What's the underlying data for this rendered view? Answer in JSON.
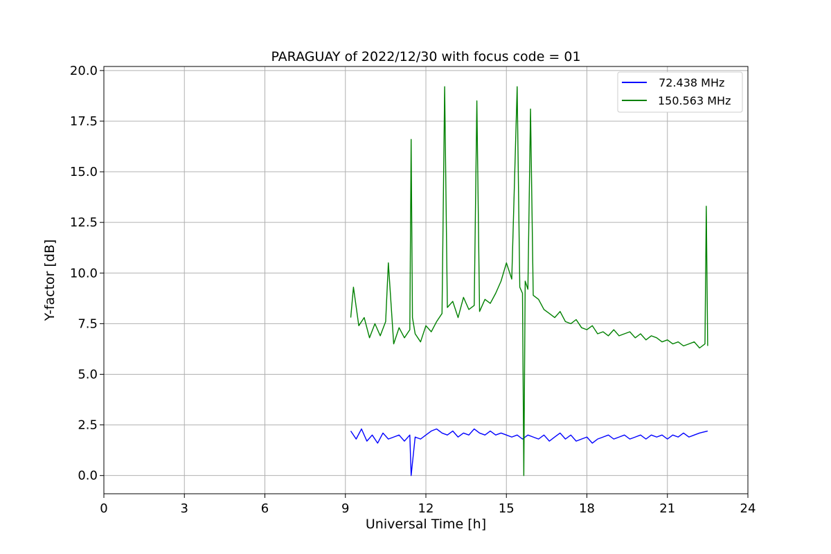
{
  "chart_data": {
    "type": "line",
    "title": "PARAGUAY of 2022/12/30 with focus code = 01",
    "xlabel": "Universal Time [h]",
    "ylabel": "Y-factor [dB]",
    "xlim": [
      0,
      24
    ],
    "ylim": [
      -0.9,
      20.2
    ],
    "xticks": [
      0,
      3,
      6,
      9,
      12,
      15,
      18,
      21,
      24
    ],
    "xtick_labels": [
      "0",
      "3",
      "6",
      "9",
      "12",
      "15",
      "18",
      "21",
      "24"
    ],
    "yticks": [
      0.0,
      2.5,
      5.0,
      7.5,
      10.0,
      12.5,
      15.0,
      17.5,
      20.0
    ],
    "ytick_labels": [
      "0.0",
      "2.5",
      "5.0",
      "7.5",
      "10.0",
      "12.5",
      "15.0",
      "17.5",
      "20.0"
    ],
    "grid": true,
    "legend_position": "top-right",
    "series": [
      {
        "name": " 72.438 MHz",
        "color": "#0000ff",
        "x": [
          9.2,
          9.4,
          9.6,
          9.8,
          10.0,
          10.2,
          10.4,
          10.6,
          10.8,
          11.0,
          11.2,
          11.4,
          11.45,
          11.6,
          11.8,
          12.0,
          12.2,
          12.4,
          12.6,
          12.8,
          13.0,
          13.2,
          13.4,
          13.6,
          13.8,
          14.0,
          14.2,
          14.4,
          14.6,
          14.8,
          15.0,
          15.2,
          15.4,
          15.6,
          15.8,
          16.0,
          16.2,
          16.4,
          16.6,
          16.8,
          17.0,
          17.2,
          17.4,
          17.6,
          17.8,
          18.0,
          18.2,
          18.4,
          18.6,
          18.8,
          19.0,
          19.2,
          19.4,
          19.6,
          19.8,
          20.0,
          20.2,
          20.4,
          20.6,
          20.8,
          21.0,
          21.2,
          21.4,
          21.6,
          21.8,
          22.0,
          22.2,
          22.5
        ],
        "y": [
          2.2,
          1.8,
          2.3,
          1.7,
          2.0,
          1.6,
          2.1,
          1.8,
          1.9,
          2.0,
          1.7,
          2.0,
          0.0,
          1.9,
          1.8,
          2.0,
          2.2,
          2.3,
          2.1,
          2.0,
          2.2,
          1.9,
          2.1,
          2.0,
          2.3,
          2.1,
          2.0,
          2.2,
          2.0,
          2.1,
          2.0,
          1.9,
          2.0,
          1.8,
          2.0,
          1.9,
          1.8,
          2.0,
          1.7,
          1.9,
          2.1,
          1.8,
          2.0,
          1.7,
          1.8,
          1.9,
          1.6,
          1.8,
          1.9,
          2.0,
          1.8,
          1.9,
          2.0,
          1.8,
          1.9,
          2.0,
          1.8,
          2.0,
          1.9,
          2.0,
          1.8,
          2.0,
          1.9,
          2.1,
          1.9,
          2.0,
          2.1,
          2.2
        ]
      },
      {
        "name": "150.563 MHz",
        "color": "#008000",
        "x": [
          9.2,
          9.3,
          9.5,
          9.7,
          9.9,
          10.1,
          10.3,
          10.5,
          10.6,
          10.8,
          11.0,
          11.2,
          11.4,
          11.45,
          11.5,
          11.6,
          11.8,
          12.0,
          12.2,
          12.4,
          12.6,
          12.7,
          12.8,
          13.0,
          13.2,
          13.4,
          13.6,
          13.8,
          13.9,
          14.0,
          14.2,
          14.4,
          14.6,
          14.8,
          15.0,
          15.2,
          15.4,
          15.5,
          15.6,
          15.65,
          15.7,
          15.8,
          15.9,
          16.0,
          16.2,
          16.4,
          16.6,
          16.8,
          17.0,
          17.2,
          17.4,
          17.6,
          17.8,
          18.0,
          18.2,
          18.4,
          18.6,
          18.8,
          19.0,
          19.2,
          19.4,
          19.6,
          19.8,
          20.0,
          20.2,
          20.4,
          20.6,
          20.8,
          21.0,
          21.2,
          21.4,
          21.6,
          21.8,
          22.0,
          22.2,
          22.4,
          22.45,
          22.5
        ],
        "y": [
          7.8,
          9.3,
          7.4,
          7.8,
          6.8,
          7.5,
          6.9,
          7.6,
          10.5,
          6.5,
          7.3,
          6.8,
          7.2,
          16.6,
          7.8,
          7.0,
          6.6,
          7.4,
          7.1,
          7.6,
          8.0,
          19.2,
          8.3,
          8.6,
          7.8,
          8.8,
          8.2,
          8.4,
          18.5,
          8.1,
          8.7,
          8.5,
          9.0,
          9.6,
          10.5,
          9.7,
          19.2,
          9.3,
          9.0,
          0.0,
          9.6,
          9.2,
          18.1,
          8.9,
          8.7,
          8.2,
          8.0,
          7.8,
          8.1,
          7.6,
          7.5,
          7.7,
          7.3,
          7.2,
          7.4,
          7.0,
          7.1,
          6.9,
          7.2,
          6.9,
          7.0,
          7.1,
          6.8,
          7.0,
          6.7,
          6.9,
          6.8,
          6.6,
          6.7,
          6.5,
          6.6,
          6.4,
          6.5,
          6.6,
          6.3,
          6.5,
          13.3,
          6.4
        ]
      }
    ]
  }
}
